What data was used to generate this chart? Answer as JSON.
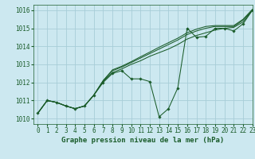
{
  "title": "Graphe pression niveau de la mer (hPa)",
  "bg_color": "#cce8f0",
  "grid_color": "#a8cdd8",
  "line_color": "#1a5c2a",
  "marker_color": "#1a5c2a",
  "xlim": [
    -0.5,
    23
  ],
  "ylim": [
    1009.7,
    1016.3
  ],
  "yticks": [
    1010,
    1011,
    1012,
    1013,
    1014,
    1015,
    1016
  ],
  "xticks": [
    0,
    1,
    2,
    3,
    4,
    5,
    6,
    7,
    8,
    9,
    10,
    11,
    12,
    13,
    14,
    15,
    16,
    17,
    18,
    19,
    20,
    21,
    22,
    23
  ],
  "series_main": [
    1010.3,
    1011.0,
    1010.9,
    1010.7,
    1010.55,
    1010.7,
    1011.3,
    1012.0,
    1012.5,
    1012.65,
    1012.2,
    1012.2,
    1012.05,
    1010.1,
    1010.55,
    1011.7,
    1015.0,
    1014.5,
    1014.55,
    1015.0,
    1015.0,
    1014.85,
    1015.25,
    1016.0
  ],
  "series_trend1": [
    1010.3,
    1011.0,
    1010.9,
    1010.7,
    1010.55,
    1010.7,
    1011.3,
    1012.05,
    1012.55,
    1012.75,
    1013.0,
    1013.2,
    1013.45,
    1013.65,
    1013.85,
    1014.1,
    1014.4,
    1014.6,
    1014.75,
    1014.9,
    1015.0,
    1015.05,
    1015.35,
    1016.0
  ],
  "series_trend2": [
    1010.3,
    1011.0,
    1010.9,
    1010.7,
    1010.55,
    1010.7,
    1011.3,
    1012.1,
    1012.65,
    1012.85,
    1013.1,
    1013.35,
    1013.6,
    1013.85,
    1014.1,
    1014.35,
    1014.65,
    1014.85,
    1015.0,
    1015.1,
    1015.1,
    1015.1,
    1015.45,
    1016.0
  ],
  "series_trend3": [
    1010.3,
    1011.0,
    1010.9,
    1010.7,
    1010.55,
    1010.7,
    1011.3,
    1012.1,
    1012.7,
    1012.9,
    1013.15,
    1013.42,
    1013.68,
    1013.95,
    1014.2,
    1014.45,
    1014.75,
    1014.95,
    1015.1,
    1015.15,
    1015.15,
    1015.15,
    1015.5,
    1016.05
  ],
  "font_size_label": 6.5,
  "font_size_tick": 5.5,
  "figsize": [
    3.2,
    2.0
  ],
  "dpi": 100
}
